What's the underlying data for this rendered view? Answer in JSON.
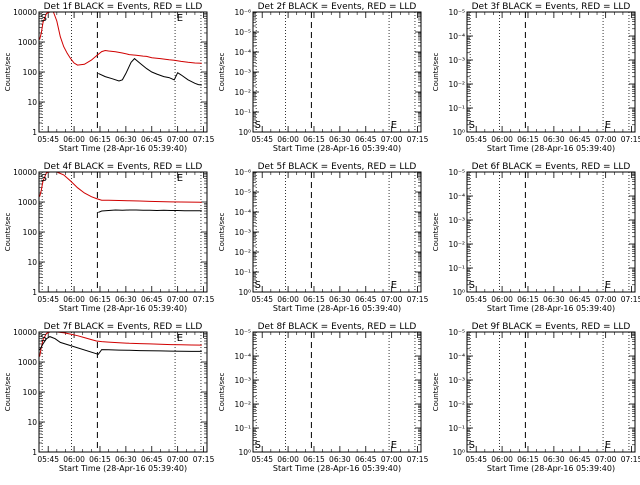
{
  "chart_data": [
    {
      "type": "line",
      "title": "Det 1f BLACK = Events, RED = LLD",
      "xlabel": "Start Time (28-Apr-16 05:39:40)",
      "ylabel": "Counts/sec",
      "xticks": [
        "05:45",
        "06:00",
        "06:15",
        "06:30",
        "06:45",
        "07:00",
        "07:15"
      ],
      "yscale": "log",
      "ylim": [
        1,
        10000
      ],
      "yticks": [
        "1",
        "10",
        "100",
        "1000",
        "10000"
      ],
      "xlim_minutes": [
        339.67,
        437
      ],
      "markers": [
        {
          "label": "S",
          "x": 340.6
        },
        {
          "label": "E",
          "x": 419.5
        }
      ],
      "vlines_dotted": [
        341.5,
        358.5,
        418.5,
        433.5
      ],
      "vlines_dashed": [
        373.5
      ],
      "series": [
        {
          "color": "#d00000",
          "points": [
            [
              340,
              1200
            ],
            [
              341,
              2000
            ],
            [
              342,
              4500
            ],
            [
              344,
              9000
            ],
            [
              346,
              10000
            ],
            [
              348,
              10000
            ],
            [
              350,
              5000
            ],
            [
              352,
              1500
            ],
            [
              354,
              700
            ],
            [
              356,
              420
            ],
            [
              358,
              280
            ],
            [
              360,
              200
            ],
            [
              362,
              170
            ],
            [
              366,
              180
            ],
            [
              370,
              250
            ],
            [
              373,
              350
            ],
            [
              376,
              480
            ],
            [
              378,
              520
            ],
            [
              380,
              500
            ],
            [
              384,
              470
            ],
            [
              388,
              430
            ],
            [
              392,
              380
            ],
            [
              396,
              360
            ],
            [
              400,
              340
            ],
            [
              402,
              330
            ],
            [
              405,
              300
            ],
            [
              410,
              280
            ],
            [
              415,
              255
            ],
            [
              418,
              245
            ],
            [
              422,
              225
            ],
            [
              426,
              210
            ],
            [
              430,
              200
            ],
            [
              434,
              195
            ]
          ]
        },
        {
          "color": "#000000",
          "points": [
            [
              374,
              90
            ],
            [
              378,
              70
            ],
            [
              382,
              60
            ],
            [
              386,
              50
            ],
            [
              388,
              55
            ],
            [
              390,
              90
            ],
            [
              393,
              210
            ],
            [
              395,
              280
            ],
            [
              398,
              200
            ],
            [
              402,
              130
            ],
            [
              405,
              100
            ],
            [
              408,
              85
            ],
            [
              412,
              70
            ],
            [
              415,
              65
            ],
            [
              418,
              55
            ],
            [
              420,
              95
            ],
            [
              422,
              80
            ],
            [
              426,
              55
            ],
            [
              430,
              42
            ],
            [
              432,
              38
            ],
            [
              434,
              37
            ]
          ]
        }
      ]
    },
    {
      "type": "line",
      "title": "Det 2f BLACK = Events, RED = LLD",
      "xlabel": "Start Time (28-Apr-16 05:39:40)",
      "ylabel": "Counts/sec",
      "xticks": [
        "05:45",
        "06:00",
        "06:15",
        "06:30",
        "06:45",
        "07:00",
        "07:15"
      ],
      "yscale": "log",
      "ylim": [
        1,
        1e-06
      ],
      "yticks": [
        "10⁰",
        "10⁻¹",
        "10⁻²",
        "10⁻³",
        "10⁻⁴",
        "10⁻⁵",
        "10⁻⁶"
      ],
      "xlim_minutes": [
        339.67,
        437
      ],
      "markers": [
        {
          "label": "S",
          "x": 340.6
        },
        {
          "label": "E",
          "x": 419.5
        }
      ],
      "vlines_dotted": [
        341.5,
        358.5,
        418.5,
        433.5
      ],
      "vlines_dashed": [
        373.5
      ],
      "series": []
    },
    {
      "type": "line",
      "title": "Det 3f BLACK = Events, RED = LLD",
      "xlabel": "Start Time (28-Apr-16 05:39:40)",
      "ylabel": "Counts/sec",
      "xticks": [
        "05:45",
        "06:00",
        "06:15",
        "06:30",
        "06:45",
        "07:00",
        "07:15"
      ],
      "yscale": "log",
      "ylim": [
        1,
        1e-05
      ],
      "yticks": [
        "10⁰",
        "10⁻¹",
        "10⁻²",
        "10⁻³",
        "10⁻⁴",
        "10⁻⁵"
      ],
      "xlim_minutes": [
        339.67,
        437
      ],
      "markers": [
        {
          "label": "S",
          "x": 340.6
        },
        {
          "label": "E",
          "x": 419.5
        }
      ],
      "vlines_dotted": [
        341.5,
        358.5,
        418.5,
        433.5
      ],
      "vlines_dashed": [
        373.5
      ],
      "series": []
    },
    {
      "type": "line",
      "title": "Det 4f BLACK = Events, RED = LLD",
      "xlabel": "Start Time (28-Apr-16 05:39:40)",
      "ylabel": "Counts/sec",
      "xticks": [
        "05:45",
        "06:00",
        "06:15",
        "06:30",
        "06:45",
        "07:00",
        "07:15"
      ],
      "yscale": "log",
      "ylim": [
        1,
        10000
      ],
      "yticks": [
        "1",
        "10",
        "100",
        "1000",
        "10000"
      ],
      "xlim_minutes": [
        339.67,
        437
      ],
      "markers": [
        {
          "label": "S",
          "x": 340.6
        },
        {
          "label": "E",
          "x": 419.5
        }
      ],
      "vlines_dotted": [
        341.5,
        358.5,
        418.5,
        433.5
      ],
      "vlines_dashed": [
        373.5
      ],
      "series": [
        {
          "color": "#d00000",
          "points": [
            [
              340,
              1500
            ],
            [
              341,
              2500
            ],
            [
              342,
              5000
            ],
            [
              344,
              9500
            ],
            [
              346,
              10000
            ],
            [
              350,
              10000
            ],
            [
              354,
              8000
            ],
            [
              358,
              5000
            ],
            [
              362,
              3000
            ],
            [
              366,
              2000
            ],
            [
              370,
              1500
            ],
            [
              373,
              1300
            ],
            [
              376,
              1150
            ],
            [
              380,
              1150
            ],
            [
              386,
              1120
            ],
            [
              392,
              1100
            ],
            [
              398,
              1080
            ],
            [
              404,
              1050
            ],
            [
              410,
              1030
            ],
            [
              416,
              1010
            ],
            [
              422,
              1000
            ],
            [
              428,
              990
            ],
            [
              434,
              980
            ]
          ]
        },
        {
          "color": "#000000",
          "points": [
            [
              374,
              450
            ],
            [
              376,
              500
            ],
            [
              380,
              520
            ],
            [
              384,
              540
            ],
            [
              388,
              530
            ],
            [
              392,
              540
            ],
            [
              396,
              540
            ],
            [
              400,
              530
            ],
            [
              404,
              530
            ],
            [
              408,
              520
            ],
            [
              412,
              530
            ],
            [
              416,
              520
            ],
            [
              420,
              520
            ],
            [
              424,
              510
            ],
            [
              428,
              510
            ],
            [
              434,
              510
            ]
          ]
        }
      ]
    },
    {
      "type": "line",
      "title": "Det 5f BLACK = Events, RED = LLD",
      "xlabel": "Start Time (28-Apr-16 05:39:40)",
      "ylabel": "Counts/sec",
      "xticks": [
        "05:45",
        "06:00",
        "06:15",
        "06:30",
        "06:45",
        "07:00",
        "07:15"
      ],
      "yscale": "log",
      "ylim": [
        1,
        1e-06
      ],
      "yticks": [
        "10⁰",
        "10⁻¹",
        "10⁻²",
        "10⁻³",
        "10⁻⁴",
        "10⁻⁵",
        "10⁻⁶"
      ],
      "xlim_minutes": [
        339.67,
        437
      ],
      "markers": [
        {
          "label": "S",
          "x": 340.6
        },
        {
          "label": "E",
          "x": 419.5
        }
      ],
      "vlines_dotted": [
        341.5,
        358.5,
        418.5,
        433.5
      ],
      "vlines_dashed": [
        373.5
      ],
      "series": []
    },
    {
      "type": "line",
      "title": "Det 6f BLACK = Events, RED = LLD",
      "xlabel": "Start Time (28-Apr-16 05:39:40)",
      "ylabel": "Counts/sec",
      "xticks": [
        "05:45",
        "06:00",
        "06:15",
        "06:30",
        "06:45",
        "07:00",
        "07:15"
      ],
      "yscale": "log",
      "ylim": [
        1,
        1e-05
      ],
      "yticks": [
        "10⁰",
        "10⁻¹",
        "10⁻²",
        "10⁻³",
        "10⁻⁴",
        "10⁻⁵"
      ],
      "xlim_minutes": [
        339.67,
        437
      ],
      "markers": [
        {
          "label": "S",
          "x": 340.6
        },
        {
          "label": "E",
          "x": 419.5
        }
      ],
      "vlines_dotted": [
        341.5,
        358.5,
        418.5,
        433.5
      ],
      "vlines_dashed": [
        373.5
      ],
      "series": []
    },
    {
      "type": "line",
      "title": "Det 7f BLACK = Events, RED = LLD",
      "xlabel": "Start Time (28-Apr-16 05:39:40)",
      "ylabel": "Counts/sec",
      "xticks": [
        "05:45",
        "06:00",
        "06:15",
        "06:30",
        "06:45",
        "07:00",
        "07:15"
      ],
      "yscale": "log",
      "ylim": [
        1,
        10000
      ],
      "yticks": [
        "1",
        "10",
        "100",
        "1000",
        "10000"
      ],
      "xlim_minutes": [
        339.67,
        437
      ],
      "markers": [
        {
          "label": "S",
          "x": 340.6
        },
        {
          "label": "E",
          "x": 419.5
        }
      ],
      "vlines_dotted": [
        341.5,
        358.5,
        418.5,
        433.5
      ],
      "vlines_dashed": [
        373.5
      ],
      "series": [
        {
          "color": "#d00000",
          "points": [
            [
              340,
              1500
            ],
            [
              341,
              3000
            ],
            [
              342,
              5500
            ],
            [
              344,
              9000
            ],
            [
              346,
              10000
            ],
            [
              350,
              10000
            ],
            [
              354,
              9500
            ],
            [
              358,
              8500
            ],
            [
              362,
              7500
            ],
            [
              366,
              6500
            ],
            [
              370,
              5600
            ],
            [
              373,
              5000
            ],
            [
              376,
              4800
            ],
            [
              380,
              4600
            ],
            [
              386,
              4400
            ],
            [
              392,
              4200
            ],
            [
              398,
              4100
            ],
            [
              404,
              4000
            ],
            [
              410,
              3900
            ],
            [
              416,
              3800
            ],
            [
              422,
              3750
            ],
            [
              428,
              3700
            ],
            [
              434,
              3650
            ]
          ]
        },
        {
          "color": "#000000",
          "points": [
            [
              340,
              2500
            ],
            [
              342,
              4000
            ],
            [
              344,
              6000
            ],
            [
              346,
              7000
            ],
            [
              349,
              6000
            ],
            [
              352,
              4500
            ],
            [
              374,
              1800
            ],
            [
              376,
              2600
            ],
            [
              380,
              2550
            ],
            [
              386,
              2500
            ],
            [
              392,
              2450
            ],
            [
              398,
              2400
            ],
            [
              404,
              2380
            ],
            [
              410,
              2350
            ],
            [
              416,
              2300
            ],
            [
              422,
              2280
            ],
            [
              428,
              2250
            ],
            [
              434,
              2250
            ]
          ]
        }
      ]
    },
    {
      "type": "line",
      "title": "Det 8f BLACK = Events, RED = LLD",
      "xlabel": "Start Time (28-Apr-16 05:39:40)",
      "ylabel": "Counts/sec",
      "xticks": [
        "05:45",
        "06:00",
        "06:15",
        "06:30",
        "06:45",
        "07:00",
        "07:15"
      ],
      "yscale": "log",
      "ylim": [
        1,
        1e-05
      ],
      "yticks": [
        "10⁰",
        "10⁻¹",
        "10⁻²",
        "10⁻³",
        "10⁻⁴",
        "10⁻⁵"
      ],
      "xlim_minutes": [
        339.67,
        437
      ],
      "markers": [
        {
          "label": "S",
          "x": 340.6
        },
        {
          "label": "E",
          "x": 419.5
        }
      ],
      "vlines_dotted": [
        341.5,
        358.5,
        418.5,
        433.5
      ],
      "vlines_dashed": [
        373.5
      ],
      "series": []
    },
    {
      "type": "line",
      "title": "Det 9f BLACK = Events, RED = LLD",
      "xlabel": "Start Time (28-Apr-16 05:39:40)",
      "ylabel": "Counts/sec",
      "xticks": [
        "05:45",
        "06:00",
        "06:15",
        "06:30",
        "06:45",
        "07:00",
        "07:15"
      ],
      "yscale": "log",
      "ylim": [
        1,
        1e-05
      ],
      "yticks": [
        "10⁰",
        "10⁻¹",
        "10⁻²",
        "10⁻³",
        "10⁻⁴",
        "10⁻⁵"
      ],
      "xlim_minutes": [
        339.67,
        437
      ],
      "markers": [
        {
          "label": "S",
          "x": 340.6
        },
        {
          "label": "E",
          "x": 419.5
        }
      ],
      "vlines_dotted": [
        341.5,
        358.5,
        418.5,
        433.5
      ],
      "vlines_dashed": [
        373.5
      ],
      "series": []
    }
  ]
}
